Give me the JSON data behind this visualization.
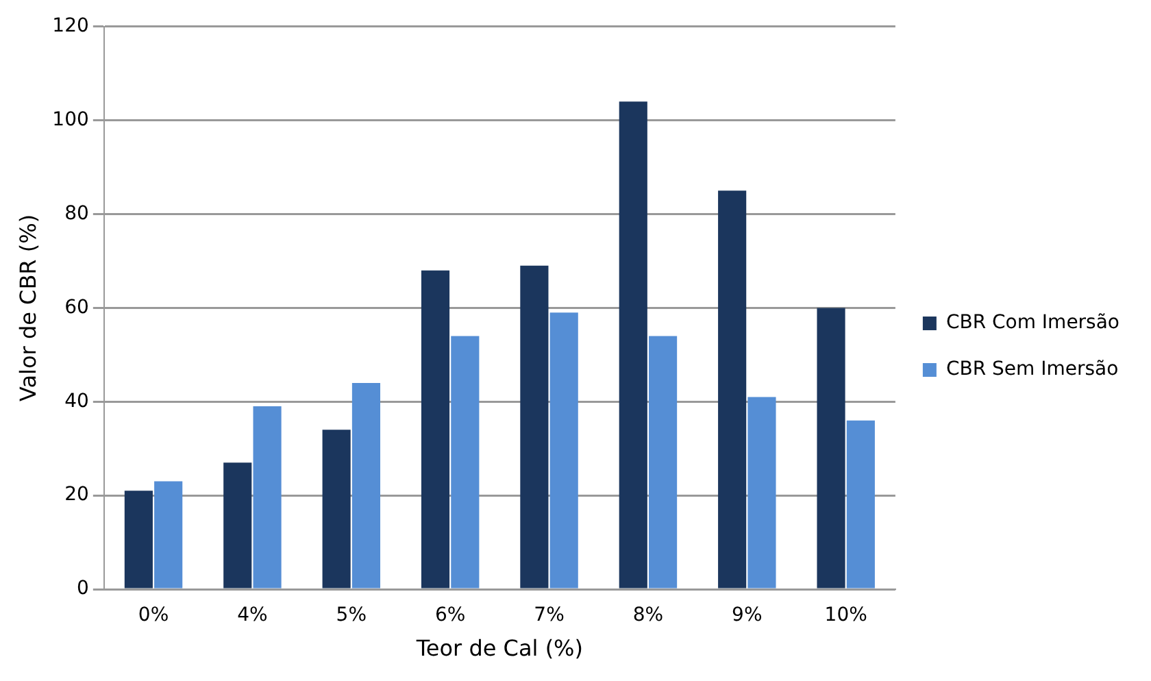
{
  "chart_data": {
    "type": "bar",
    "xlabel": "Teor de Cal (%)",
    "ylabel": "Valor de CBR (%)",
    "categories": [
      "0%",
      "4%",
      "5%",
      "6%",
      "7%",
      "8%",
      "9%",
      "10%"
    ],
    "series": [
      {
        "name": "CBR Com Imersão",
        "color": "#1b365d",
        "values": [
          21,
          27,
          34,
          68,
          69,
          104,
          85,
          60
        ]
      },
      {
        "name": "CBR Sem Imersão",
        "color": "#558ed5",
        "values": [
          23,
          39,
          44,
          54,
          59,
          54,
          41,
          36
        ]
      }
    ],
    "ylim": [
      0,
      120
    ],
    "yticks": [
      0,
      20,
      40,
      60,
      80,
      100,
      120
    ],
    "grid": "y",
    "legend": "right"
  }
}
